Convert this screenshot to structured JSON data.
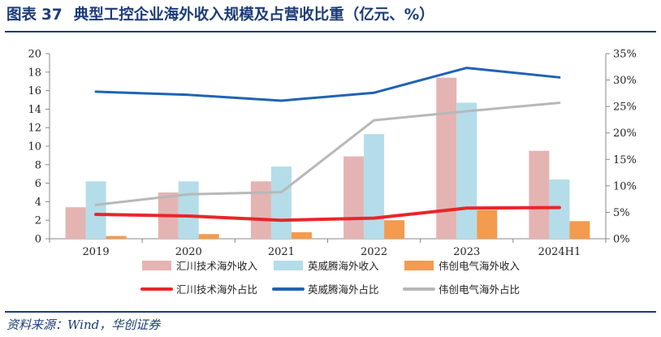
{
  "figure": {
    "label": "图表",
    "number": "37",
    "title": "典型工控企业海外收入规模及占营收比重（亿元、%）",
    "source": "资料来源：Wind，华创证券"
  },
  "chart_data": {
    "type": "bar",
    "categories": [
      "2019",
      "2020",
      "2021",
      "2022",
      "2023",
      "2024H1"
    ],
    "y_left": {
      "ylim": [
        0,
        20
      ],
      "ticks": [
        "0",
        "2",
        "4",
        "6",
        "8",
        "10",
        "12",
        "14",
        "16",
        "18",
        "20"
      ]
    },
    "y_right": {
      "ylim": [
        0,
        35
      ],
      "ticks": [
        "0%",
        "5%",
        "10%",
        "15%",
        "20%",
        "25%",
        "30%",
        "35%"
      ]
    },
    "grid": false,
    "legend_position": "bottom",
    "bar_series": [
      {
        "name": "汇川技术海外收入",
        "color": "#e4b4b3",
        "values": [
          3.4,
          5.0,
          6.2,
          8.9,
          17.4,
          9.5
        ]
      },
      {
        "name": "英威腾海外收入",
        "color": "#b4dde9",
        "values": [
          6.2,
          6.2,
          7.8,
          11.3,
          14.7,
          6.4
        ]
      },
      {
        "name": "伟创电气海外收入",
        "color": "#f39b4e",
        "values": [
          0.3,
          0.5,
          0.7,
          2.0,
          3.1,
          1.9
        ]
      }
    ],
    "line_series": [
      {
        "name": "汇川技术海外占比",
        "color": "#e8262a",
        "values": [
          4.6,
          4.3,
          3.5,
          3.9,
          5.8,
          5.9
        ]
      },
      {
        "name": "英威腾海外占比",
        "color": "#1f63b4",
        "values": [
          27.8,
          27.2,
          26.1,
          27.6,
          32.3,
          30.5
        ]
      },
      {
        "name": "伟创电气海外占比",
        "color": "#b8b8b8",
        "values": [
          6.4,
          8.4,
          8.8,
          22.4,
          24.1,
          25.7
        ]
      }
    ]
  }
}
